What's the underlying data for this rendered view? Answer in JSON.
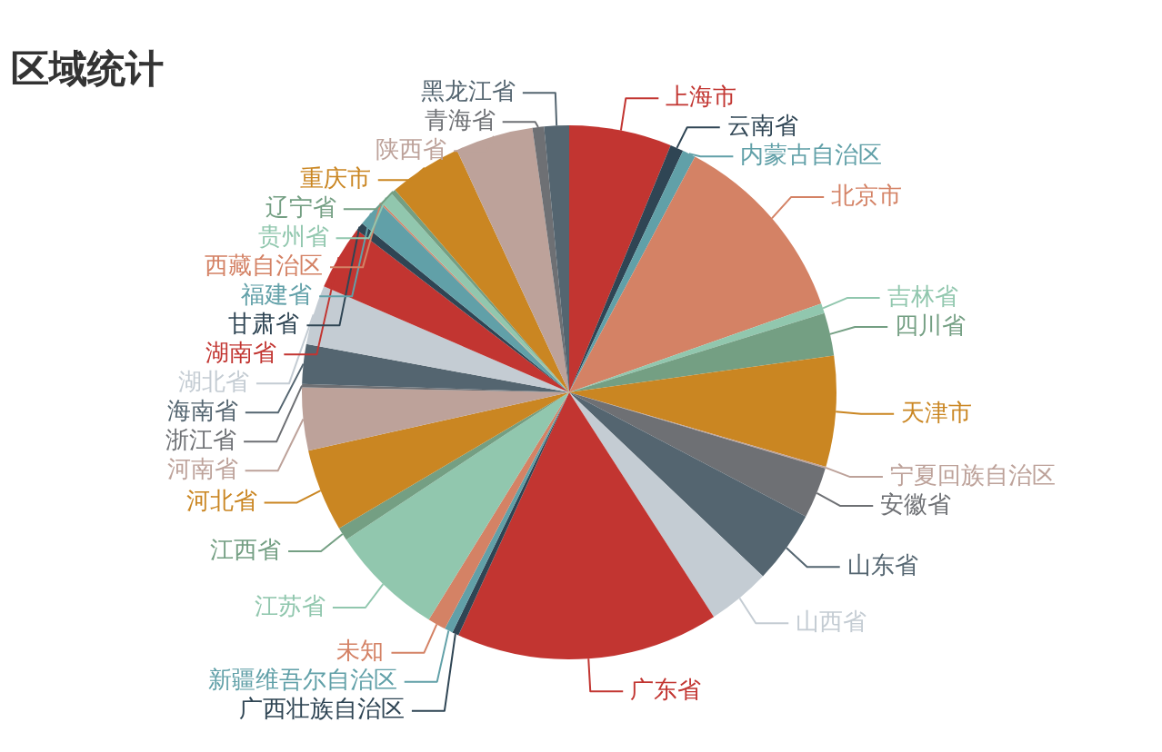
{
  "chart_data": {
    "type": "pie",
    "title": "区域统计",
    "categories": [
      "上海市",
      "云南省",
      "内蒙古自治区",
      "北京市",
      "吉林省",
      "四川省",
      "天津市",
      "宁夏回族自治区",
      "安徽省",
      "山东省",
      "山西省",
      "广东省",
      "广西壮族自治区",
      "新疆维吾尔自治区",
      "未知",
      "江苏省",
      "江西省",
      "河北省",
      "河南省",
      "浙江省",
      "海南省",
      "湖北省",
      "湖南省",
      "甘肃省",
      "福建省",
      "西藏自治区",
      "贵州省",
      "辽宁省",
      "重庆市",
      "陕西省",
      "青海省",
      "黑龙江省"
    ],
    "values": [
      6.2,
      0.8,
      0.8,
      11.8,
      0.6,
      2.6,
      6.7,
      0.1,
      3.1,
      4.4,
      3.8,
      15.9,
      0.4,
      0.5,
      1.1,
      6.9,
      0.8,
      5.0,
      3.8,
      0.2,
      2.4,
      3.6,
      3.9,
      0.5,
      1.6,
      0.1,
      0.8,
      0.3,
      4.4,
      4.7,
      0.7,
      1.5
    ],
    "colors": [
      "#c23531",
      "#2f4554",
      "#61a0a8",
      "#d48265",
      "#91c7ae",
      "#749f83",
      "#ca8622",
      "#bda29a",
      "#6e7074",
      "#546570",
      "#c4ccd3",
      "#c23531",
      "#2f4554",
      "#61a0a8",
      "#d48265",
      "#91c7ae",
      "#749f83",
      "#ca8622",
      "#bda29a",
      "#6e7074",
      "#546570",
      "#c4ccd3",
      "#c23531",
      "#2f4554",
      "#61a0a8",
      "#d48265",
      "#91c7ae",
      "#749f83",
      "#ca8622",
      "#bda29a",
      "#6e7074",
      "#546570"
    ]
  }
}
